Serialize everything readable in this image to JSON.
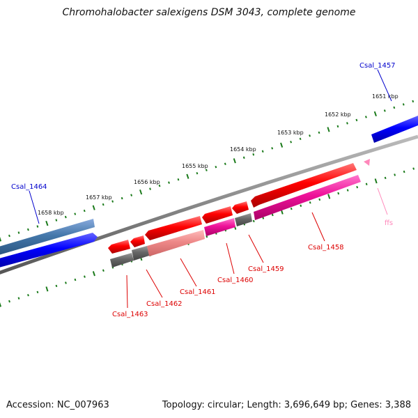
{
  "title": "Chromohalobacter salexigens DSM 3043, complete genome",
  "scale_labels": [
    "1651 kbp",
    "1652 kbp",
    "1653 kbp",
    "1654 kbp",
    "1655 kbp",
    "1656 kbp",
    "1657 kbp",
    "1658 kbp"
  ],
  "genes": [
    {
      "name": "Csal_1457",
      "color": "#0000cc",
      "strand": "forward"
    },
    {
      "name": "Csal_1458",
      "color": "#dd0000",
      "strand": "reverse"
    },
    {
      "name": "Csal_1459",
      "color": "#dd0000",
      "strand": "reverse"
    },
    {
      "name": "Csal_1460",
      "color": "#dd0000",
      "strand": "reverse"
    },
    {
      "name": "Csal_1461",
      "color": "#dd0000",
      "strand": "reverse"
    },
    {
      "name": "Csal_1462",
      "color": "#dd0000",
      "strand": "reverse"
    },
    {
      "name": "Csal_1463",
      "color": "#dd0000",
      "strand": "reverse"
    },
    {
      "name": "Csal_1464",
      "color": "#0000cc",
      "strand": "forward"
    },
    {
      "name": "ffs",
      "color": "#ff88bb",
      "strand": "reverse"
    }
  ],
  "colors": {
    "forward_gene": "#0000ff",
    "forward_gene_other": "#4477aa",
    "reverse_gene": "#ff0000",
    "reverse_gene_light": "#ee8888",
    "reverse_gene_magenta": "#ee1199",
    "pseudo_gene": "#666666",
    "backbone": "#888888",
    "scale_tick": "#1a7a1a",
    "rna": "#ff88bb"
  },
  "footer": {
    "accession": "Accession: NC_007963",
    "summary": "Topology: circular; Length: 3,696,649 bp; Genes: 3,388"
  }
}
